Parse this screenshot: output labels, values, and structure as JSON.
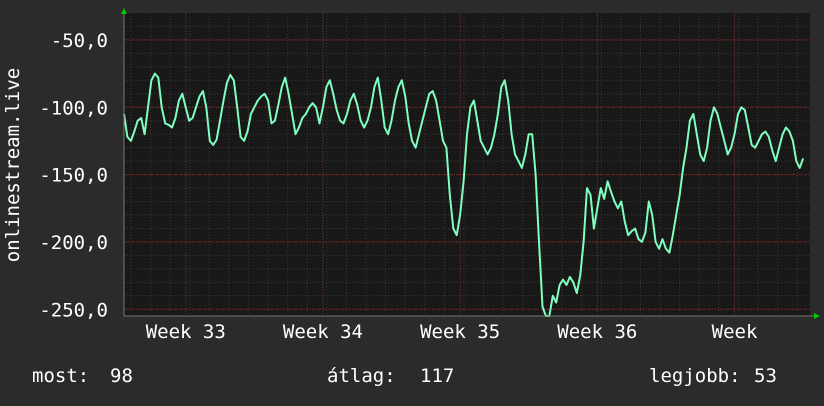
{
  "colors": {
    "background": "#2b2b2b",
    "plot_background": "#181818",
    "grid_minor": "#3a3a3a",
    "grid_major": "#6b3030",
    "line": "#7fffbf",
    "axis_arrow": "#00cc00",
    "text": "#ffffff"
  },
  "chart_data": {
    "type": "line",
    "ylabel": "onlinestream.live",
    "xlabel": "",
    "title": "",
    "ylim": [
      -255,
      -30
    ],
    "y_ticks": [
      -50,
      -100,
      -150,
      -200,
      -250
    ],
    "y_tick_labels": [
      "-50,0",
      "-100,0",
      "-150,0",
      "-200,0",
      "-250,0"
    ],
    "x_range": [
      0,
      100
    ],
    "x_ticks": [
      9,
      29,
      49,
      69,
      89
    ],
    "x_tick_labels": [
      "Week 33",
      "Week 34",
      "Week 35",
      "Week 36",
      "Week"
    ],
    "grid": true,
    "series": [
      {
        "values": [
          [
            0.0,
            -105
          ],
          [
            0.5,
            -122
          ],
          [
            1.0,
            -125
          ],
          [
            1.5,
            -118
          ],
          [
            2.0,
            -110
          ],
          [
            2.5,
            -108
          ],
          [
            3.0,
            -120
          ],
          [
            3.5,
            -100
          ],
          [
            4.0,
            -80
          ],
          [
            4.5,
            -75
          ],
          [
            5.0,
            -78
          ],
          [
            5.5,
            -100
          ],
          [
            6.0,
            -112
          ],
          [
            6.5,
            -113
          ],
          [
            7.0,
            -115
          ],
          [
            7.5,
            -108
          ],
          [
            8.0,
            -95
          ],
          [
            8.5,
            -90
          ],
          [
            9.0,
            -100
          ],
          [
            9.5,
            -110
          ],
          [
            10.0,
            -108
          ],
          [
            10.5,
            -100
          ],
          [
            11.0,
            -92
          ],
          [
            11.5,
            -88
          ],
          [
            12.0,
            -100
          ],
          [
            12.5,
            -125
          ],
          [
            13.0,
            -128
          ],
          [
            13.5,
            -124
          ],
          [
            14.0,
            -110
          ],
          [
            14.5,
            -95
          ],
          [
            15.0,
            -82
          ],
          [
            15.5,
            -76
          ],
          [
            16.0,
            -80
          ],
          [
            16.5,
            -100
          ],
          [
            17.0,
            -122
          ],
          [
            17.5,
            -125
          ],
          [
            18.0,
            -118
          ],
          [
            18.5,
            -105
          ],
          [
            19.0,
            -100
          ],
          [
            19.5,
            -95
          ],
          [
            20.0,
            -92
          ],
          [
            20.5,
            -90
          ],
          [
            21.0,
            -95
          ],
          [
            21.5,
            -112
          ],
          [
            22.0,
            -110
          ],
          [
            22.5,
            -98
          ],
          [
            23.0,
            -85
          ],
          [
            23.5,
            -78
          ],
          [
            24.0,
            -90
          ],
          [
            24.5,
            -105
          ],
          [
            25.0,
            -120
          ],
          [
            25.5,
            -115
          ],
          [
            26.0,
            -108
          ],
          [
            26.5,
            -105
          ],
          [
            27.0,
            -100
          ],
          [
            27.5,
            -97
          ],
          [
            28.0,
            -100
          ],
          [
            28.5,
            -112
          ],
          [
            29.0,
            -100
          ],
          [
            29.5,
            -85
          ],
          [
            30.0,
            -80
          ],
          [
            30.5,
            -90
          ],
          [
            31.0,
            -102
          ],
          [
            31.5,
            -110
          ],
          [
            32.0,
            -112
          ],
          [
            32.5,
            -105
          ],
          [
            33.0,
            -95
          ],
          [
            33.5,
            -90
          ],
          [
            34.0,
            -98
          ],
          [
            34.5,
            -110
          ],
          [
            35.0,
            -115
          ],
          [
            35.5,
            -110
          ],
          [
            36.0,
            -100
          ],
          [
            36.5,
            -85
          ],
          [
            37.0,
            -78
          ],
          [
            37.5,
            -95
          ],
          [
            38.0,
            -115
          ],
          [
            38.5,
            -120
          ],
          [
            39.0,
            -110
          ],
          [
            39.5,
            -95
          ],
          [
            40.0,
            -85
          ],
          [
            40.5,
            -80
          ],
          [
            41.0,
            -92
          ],
          [
            41.5,
            -112
          ],
          [
            42.0,
            -125
          ],
          [
            42.5,
            -130
          ],
          [
            43.0,
            -120
          ],
          [
            43.5,
            -110
          ],
          [
            44.0,
            -100
          ],
          [
            44.5,
            -90
          ],
          [
            45.0,
            -88
          ],
          [
            45.5,
            -95
          ],
          [
            46.0,
            -110
          ],
          [
            46.5,
            -125
          ],
          [
            47.0,
            -130
          ],
          [
            47.5,
            -165
          ],
          [
            48.0,
            -190
          ],
          [
            48.5,
            -195
          ],
          [
            49.0,
            -180
          ],
          [
            49.5,
            -155
          ],
          [
            50.0,
            -120
          ],
          [
            50.5,
            -100
          ],
          [
            51.0,
            -95
          ],
          [
            51.5,
            -110
          ],
          [
            52.0,
            -125
          ],
          [
            52.5,
            -130
          ],
          [
            53.0,
            -135
          ],
          [
            53.5,
            -130
          ],
          [
            54.0,
            -120
          ],
          [
            54.5,
            -105
          ],
          [
            55.0,
            -85
          ],
          [
            55.5,
            -80
          ],
          [
            56.0,
            -95
          ],
          [
            56.5,
            -120
          ],
          [
            57.0,
            -135
          ],
          [
            57.5,
            -140
          ],
          [
            58.0,
            -145
          ],
          [
            58.5,
            -135
          ],
          [
            59.0,
            -120
          ],
          [
            59.5,
            -120
          ],
          [
            60.0,
            -150
          ],
          [
            60.5,
            -200
          ],
          [
            61.0,
            -248
          ],
          [
            61.5,
            -255
          ],
          [
            62.0,
            -255
          ],
          [
            62.5,
            -240
          ],
          [
            63.0,
            -245
          ],
          [
            63.5,
            -232
          ],
          [
            64.0,
            -228
          ],
          [
            64.5,
            -232
          ],
          [
            65.0,
            -226
          ],
          [
            65.5,
            -230
          ],
          [
            66.0,
            -238
          ],
          [
            66.5,
            -225
          ],
          [
            67.0,
            -200
          ],
          [
            67.5,
            -160
          ],
          [
            68.0,
            -165
          ],
          [
            68.5,
            -190
          ],
          [
            69.0,
            -175
          ],
          [
            69.5,
            -160
          ],
          [
            70.0,
            -168
          ],
          [
            70.5,
            -155
          ],
          [
            71.0,
            -163
          ],
          [
            71.5,
            -170
          ],
          [
            72.0,
            -175
          ],
          [
            72.5,
            -170
          ],
          [
            73.0,
            -185
          ],
          [
            73.5,
            -195
          ],
          [
            74.0,
            -192
          ],
          [
            74.5,
            -190
          ],
          [
            75.0,
            -198
          ],
          [
            75.5,
            -200
          ],
          [
            76.0,
            -193
          ],
          [
            76.5,
            -170
          ],
          [
            77.0,
            -180
          ],
          [
            77.5,
            -200
          ],
          [
            78.0,
            -205
          ],
          [
            78.5,
            -198
          ],
          [
            79.0,
            -205
          ],
          [
            79.5,
            -208
          ],
          [
            80.0,
            -195
          ],
          [
            80.5,
            -180
          ],
          [
            81.0,
            -165
          ],
          [
            81.5,
            -145
          ],
          [
            82.0,
            -130
          ],
          [
            82.5,
            -110
          ],
          [
            83.0,
            -105
          ],
          [
            83.5,
            -120
          ],
          [
            84.0,
            -135
          ],
          [
            84.5,
            -140
          ],
          [
            85.0,
            -130
          ],
          [
            85.5,
            -110
          ],
          [
            86.0,
            -100
          ],
          [
            86.5,
            -105
          ],
          [
            87.0,
            -115
          ],
          [
            87.5,
            -125
          ],
          [
            88.0,
            -135
          ],
          [
            88.5,
            -130
          ],
          [
            89.0,
            -120
          ],
          [
            89.5,
            -105
          ],
          [
            90.0,
            -100
          ],
          [
            90.5,
            -102
          ],
          [
            91.0,
            -115
          ],
          [
            91.5,
            -128
          ],
          [
            92.0,
            -130
          ],
          [
            92.5,
            -125
          ],
          [
            93.0,
            -120
          ],
          [
            93.5,
            -118
          ],
          [
            94.0,
            -122
          ],
          [
            94.5,
            -132
          ],
          [
            95.0,
            -140
          ],
          [
            95.5,
            -130
          ],
          [
            96.0,
            -120
          ],
          [
            96.5,
            -115
          ],
          [
            97.0,
            -118
          ],
          [
            97.5,
            -125
          ],
          [
            98.0,
            -140
          ],
          [
            98.5,
            -145
          ],
          [
            99.0,
            -138
          ]
        ]
      }
    ],
    "stats": {
      "current_label": "most:",
      "current_value": "98",
      "average_label": "átlag:",
      "average_value": "117",
      "best_label": "legjobb:",
      "best_value": "53"
    }
  }
}
